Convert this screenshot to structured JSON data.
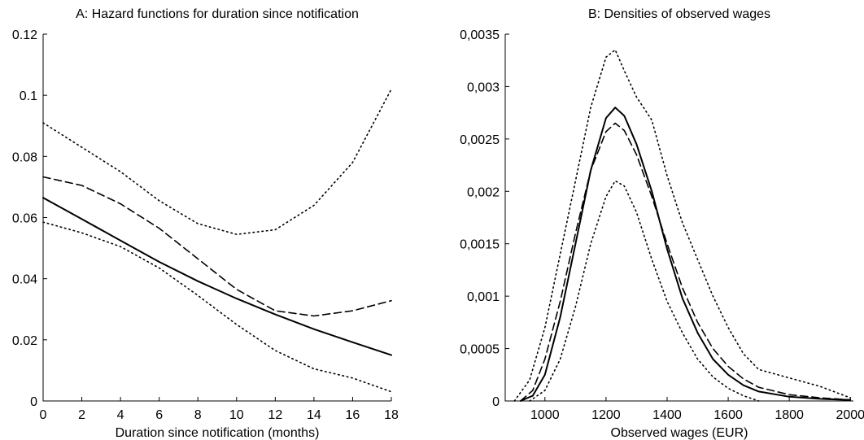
{
  "chart_data": [
    {
      "type": "line",
      "title": "A: Hazard functions for duration since notification",
      "xlabel": "Duration since notification (months)",
      "ylabel": "",
      "xlim": [
        0,
        18
      ],
      "ylim": [
        0,
        0.12
      ],
      "xticks": [
        "0",
        "2",
        "4",
        "6",
        "8",
        "10",
        "12",
        "14",
        "16",
        "18"
      ],
      "yticks": [
        "0",
        "0.02",
        "0.04",
        "0.06",
        "0.08",
        "0.1",
        "0.12"
      ],
      "grid": false,
      "series": [
        {
          "style": "solid",
          "color": "#000000",
          "x": [
            0,
            2,
            4,
            6,
            8,
            10,
            12,
            14,
            16,
            18
          ],
          "y": [
            0.0665,
            0.0595,
            0.0525,
            0.0455,
            0.0392,
            0.0335,
            0.0283,
            0.0235,
            0.0192,
            0.015
          ]
        },
        {
          "style": "dashed",
          "color": "#000000",
          "x": [
            0,
            2,
            4,
            6,
            8,
            10,
            12,
            14,
            16,
            18
          ],
          "y": [
            0.0733,
            0.0705,
            0.0645,
            0.0565,
            0.0465,
            0.0365,
            0.0295,
            0.0278,
            0.0295,
            0.0328
          ]
        },
        {
          "style": "dotted",
          "color": "#000000",
          "x": [
            0,
            2,
            4,
            6,
            8,
            10,
            12,
            14,
            16,
            18
          ],
          "y": [
            0.091,
            0.083,
            0.075,
            0.0655,
            0.058,
            0.0545,
            0.056,
            0.064,
            0.078,
            0.102
          ]
        },
        {
          "style": "dotted",
          "color": "#000000",
          "x": [
            0,
            2,
            4,
            6,
            8,
            10,
            12,
            14,
            16,
            18
          ],
          "y": [
            0.0585,
            0.055,
            0.0505,
            0.0435,
            0.0345,
            0.025,
            0.0165,
            0.0105,
            0.0075,
            0.003
          ]
        }
      ]
    },
    {
      "type": "line",
      "title": "B: Densities of observed wages",
      "xlabel": "Observed wages (EUR)",
      "ylabel": "",
      "xlim": [
        870,
        2010
      ],
      "ylim": [
        0,
        0.0035
      ],
      "xticks": [
        "1000",
        "1200",
        "1400",
        "1600",
        "1800",
        "2000"
      ],
      "yticks": [
        "0",
        "0,0005",
        "0,001",
        "0,0015",
        "0,002",
        "0,0025",
        "0,003",
        "0,0035"
      ],
      "grid": false,
      "series": [
        {
          "style": "solid",
          "color": "#000000",
          "x": [
            920,
            960,
            1000,
            1050,
            1100,
            1150,
            1200,
            1230,
            1260,
            1300,
            1350,
            1400,
            1450,
            1500,
            1550,
            1600,
            1650,
            1700,
            1800,
            1900,
            2000
          ],
          "y": [
            0.0,
            5e-05,
            0.00025,
            0.0008,
            0.0015,
            0.0022,
            0.0027,
            0.0028,
            0.00272,
            0.00245,
            0.002,
            0.00145,
            0.00098,
            0.00065,
            0.0004,
            0.00025,
            0.00015,
            9e-05,
            4e-05,
            2e-05,
            1e-05
          ]
        },
        {
          "style": "dashed",
          "color": "#000000",
          "x": [
            920,
            960,
            1000,
            1050,
            1100,
            1150,
            1200,
            1230,
            1260,
            1300,
            1350,
            1400,
            1450,
            1500,
            1550,
            1600,
            1650,
            1700,
            1800,
            1900,
            2000
          ],
          "y": [
            0.0,
            0.0001,
            0.0004,
            0.00095,
            0.0016,
            0.0022,
            0.00257,
            0.00265,
            0.00258,
            0.00235,
            0.00195,
            0.0015,
            0.00108,
            0.00075,
            0.0005,
            0.00033,
            0.00021,
            0.00013,
            6e-05,
            3e-05,
            1e-05
          ]
        },
        {
          "style": "dotted",
          "color": "#000000",
          "x": [
            900,
            950,
            1000,
            1050,
            1100,
            1150,
            1200,
            1230,
            1260,
            1300,
            1350,
            1400,
            1450,
            1500,
            1550,
            1600,
            1650,
            1700,
            1800,
            1900,
            2000
          ],
          "y": [
            0.0,
            0.0002,
            0.0007,
            0.0014,
            0.0021,
            0.0028,
            0.00328,
            0.00335,
            0.00315,
            0.0029,
            0.00268,
            0.00215,
            0.0017,
            0.00135,
            0.001,
            0.0007,
            0.00045,
            0.0003,
            0.00022,
            0.00014,
            3e-05
          ]
        },
        {
          "style": "dotted",
          "color": "#000000",
          "x": [
            950,
            1000,
            1050,
            1100,
            1150,
            1200,
            1230,
            1260,
            1300,
            1350,
            1400,
            1450,
            1500,
            1550,
            1600,
            1650,
            1700
          ],
          "y": [
            0.0,
            0.0001,
            0.0004,
            0.0009,
            0.0015,
            0.00195,
            0.0021,
            0.00205,
            0.0018,
            0.00135,
            0.00095,
            0.00065,
            0.0004,
            0.00023,
            0.00012,
            5e-05,
            0.0
          ]
        }
      ]
    }
  ]
}
